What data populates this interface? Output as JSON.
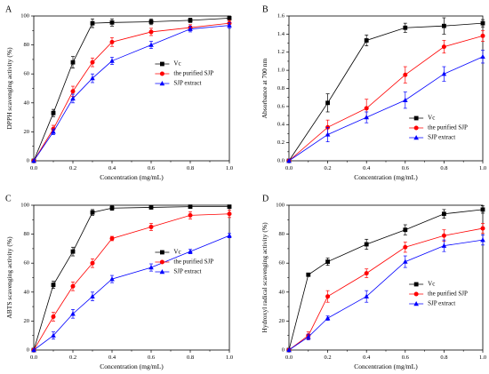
{
  "chart_data": [
    {
      "type": "line",
      "panel_label": "A",
      "xlabel": "Concentration (mg/mL)",
      "ylabel": "DPPH scavenging activity (%)",
      "xlim": [
        0,
        1.0
      ],
      "ylim": [
        0,
        100
      ],
      "xticks": [
        "0.0",
        "0.2",
        "0.4",
        "0.6",
        "0.8",
        "1.0"
      ],
      "yticks": [
        "0",
        "20",
        "40",
        "60",
        "80",
        "100"
      ],
      "legend_position": "center-right",
      "series": [
        {
          "name": "Vc",
          "color": "#000000",
          "marker": "square",
          "x": [
            0,
            0.1,
            0.2,
            0.3,
            0.4,
            0.6,
            0.8,
            1.0
          ],
          "y": [
            0,
            33,
            68,
            95,
            95.5,
            96,
            97,
            98.5
          ],
          "err": [
            0,
            2.5,
            4,
            3,
            2.5,
            2,
            1.5,
            1.5
          ]
        },
        {
          "name": "the purified SJP",
          "color": "#ff0000",
          "marker": "circle",
          "x": [
            0,
            0.1,
            0.2,
            0.3,
            0.4,
            0.6,
            0.8,
            1.0
          ],
          "y": [
            0,
            22,
            48,
            68,
            82,
            89,
            92,
            95
          ],
          "err": [
            0,
            2.5,
            3.5,
            3,
            3,
            2.5,
            2,
            2
          ]
        },
        {
          "name": "SJP extract",
          "color": "#0000ff",
          "marker": "triangle",
          "x": [
            0,
            0.1,
            0.2,
            0.3,
            0.4,
            0.6,
            0.8,
            1.0
          ],
          "y": [
            0,
            20,
            43,
            57,
            69,
            80,
            91,
            93.5
          ],
          "err": [
            0,
            2,
            3,
            3,
            2.5,
            2.5,
            2,
            2
          ]
        }
      ]
    },
    {
      "type": "line",
      "panel_label": "B",
      "xlabel": "Concentration (mg/mL)",
      "ylabel": "Absorbance at 700 nm",
      "xlim": [
        0,
        1.0
      ],
      "ylim": [
        0,
        1.6
      ],
      "xticks": [
        "0.0",
        "0.2",
        "0.4",
        "0.6",
        "0.8",
        "1.0"
      ],
      "yticks": [
        "0.0",
        "0.2",
        "0.4",
        "0.6",
        "0.8",
        "1.0",
        "1.2",
        "1.4",
        "1.6"
      ],
      "legend_position": "lower-right",
      "series": [
        {
          "name": "Vc",
          "color": "#000000",
          "marker": "square",
          "x": [
            0,
            0.2,
            0.4,
            0.6,
            0.8,
            1.0
          ],
          "y": [
            0,
            0.64,
            1.33,
            1.47,
            1.49,
            1.52
          ],
          "err": [
            0,
            0.1,
            0.06,
            0.05,
            0.09,
            0.04
          ]
        },
        {
          "name": "the purified SJP",
          "color": "#ff0000",
          "marker": "circle",
          "x": [
            0,
            0.2,
            0.4,
            0.6,
            0.8,
            1.0
          ],
          "y": [
            0,
            0.37,
            0.58,
            0.95,
            1.26,
            1.38
          ],
          "err": [
            0,
            0.08,
            0.1,
            0.09,
            0.07,
            0.06
          ]
        },
        {
          "name": "SJP extract",
          "color": "#0000ff",
          "marker": "triangle",
          "x": [
            0,
            0.2,
            0.4,
            0.6,
            0.8,
            1.0
          ],
          "y": [
            0,
            0.29,
            0.48,
            0.67,
            0.96,
            1.15
          ],
          "err": [
            0,
            0.08,
            0.06,
            0.09,
            0.08,
            0.07
          ]
        }
      ]
    },
    {
      "type": "line",
      "panel_label": "C",
      "xlabel": "Concentration (mg/mL)",
      "ylabel": "ABTS scavenging activity (%)",
      "xlim": [
        0,
        1.0
      ],
      "ylim": [
        0,
        100
      ],
      "xticks": [
        "0.0",
        "0.2",
        "0.4",
        "0.6",
        "0.8",
        "1.0"
      ],
      "yticks": [
        "0",
        "20",
        "40",
        "60",
        "80",
        "100"
      ],
      "legend_position": "center-right",
      "series": [
        {
          "name": "Vc",
          "color": "#000000",
          "marker": "square",
          "x": [
            0,
            0.1,
            0.2,
            0.3,
            0.4,
            0.6,
            0.8,
            1.0
          ],
          "y": [
            0,
            45,
            68,
            95,
            98,
            98.5,
            99,
            99
          ],
          "err": [
            0,
            2.5,
            3,
            2,
            1.5,
            1.2,
            1,
            1
          ]
        },
        {
          "name": "the purified SJP",
          "color": "#ff0000",
          "marker": "circle",
          "x": [
            0,
            0.1,
            0.2,
            0.3,
            0.4,
            0.6,
            0.8,
            1.0
          ],
          "y": [
            0,
            23,
            44,
            60,
            77,
            85,
            93,
            94
          ],
          "err": [
            0,
            3,
            3,
            3,
            1.5,
            2.5,
            2.5,
            2.5
          ]
        },
        {
          "name": "SJP extract",
          "color": "#0000ff",
          "marker": "triangle",
          "x": [
            0,
            0.1,
            0.2,
            0.3,
            0.4,
            0.6,
            0.8,
            1.0
          ],
          "y": [
            0,
            10,
            25,
            37,
            49,
            57,
            68,
            79
          ],
          "err": [
            0,
            2.5,
            3,
            3,
            2.5,
            2.5,
            1.5,
            1.5
          ]
        }
      ]
    },
    {
      "type": "line",
      "panel_label": "D",
      "xlabel": "Concentration (mg/mL)",
      "ylabel": "Hydroxyl radical scavenging activity (%)",
      "xlim": [
        0,
        1.0
      ],
      "ylim": [
        0,
        100
      ],
      "xticks": [
        "0.0",
        "0.2",
        "0.4",
        "0.6",
        "0.8",
        "1.0"
      ],
      "yticks": [
        "0",
        "20",
        "40",
        "60",
        "80",
        "100"
      ],
      "legend_position": "center-right",
      "series": [
        {
          "name": "Vc",
          "color": "#000000",
          "marker": "square",
          "x": [
            0,
            0.1,
            0.2,
            0.4,
            0.6,
            0.8,
            1.0
          ],
          "y": [
            0,
            52,
            61,
            73,
            83,
            94,
            97
          ],
          "err": [
            0,
            1,
            2.5,
            3.5,
            3.5,
            3,
            2.5
          ]
        },
        {
          "name": "the purified SJP",
          "color": "#ff0000",
          "marker": "circle",
          "x": [
            0,
            0.1,
            0.2,
            0.4,
            0.6,
            0.8,
            1.0
          ],
          "y": [
            0,
            10,
            37,
            53,
            71,
            79,
            84
          ],
          "err": [
            0,
            2.5,
            4,
            3,
            3.5,
            4,
            3.5
          ]
        },
        {
          "name": "SJP extract",
          "color": "#0000ff",
          "marker": "triangle",
          "x": [
            0,
            0.1,
            0.2,
            0.4,
            0.6,
            0.8,
            1.0
          ],
          "y": [
            0,
            9,
            22,
            37,
            61,
            72,
            76
          ],
          "err": [
            0,
            2,
            1.5,
            4,
            4,
            4,
            3.5
          ]
        }
      ]
    }
  ]
}
